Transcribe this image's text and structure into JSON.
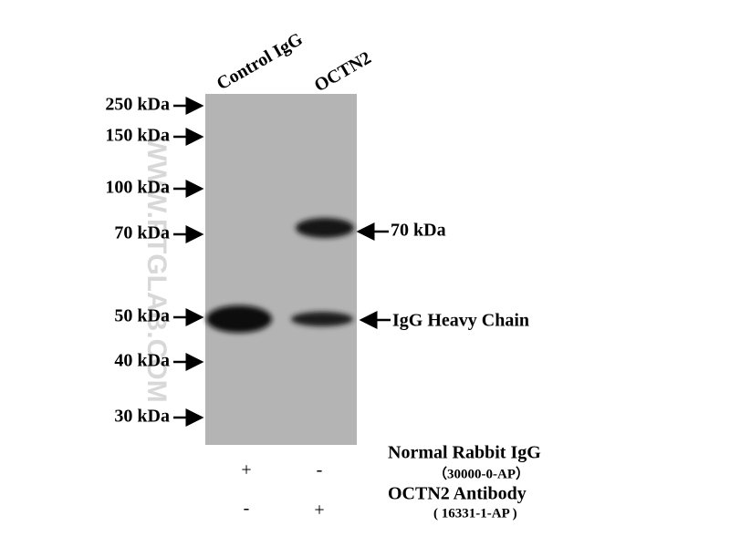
{
  "lanes": [
    "Control IgG",
    "OCTN2"
  ],
  "markers": [
    "250 kDa",
    "150 kDa",
    "100 kDa",
    "70 kDa",
    "50 kDa",
    "40 kDa",
    "30 kDa"
  ],
  "bands": [
    "70 kDa",
    "IgG Heavy Chain"
  ],
  "watermark": "WWW.PTGLAB.COM",
  "conditions": [
    {
      "name": "Normal Rabbit IgG",
      "catalog": "（30000-0-AP）",
      "signs": [
        "+",
        "-"
      ]
    },
    {
      "name": "OCTN2 Antibody",
      "catalog": "( 16331-1-AP )",
      "signs": [
        "-",
        "+"
      ]
    }
  ]
}
